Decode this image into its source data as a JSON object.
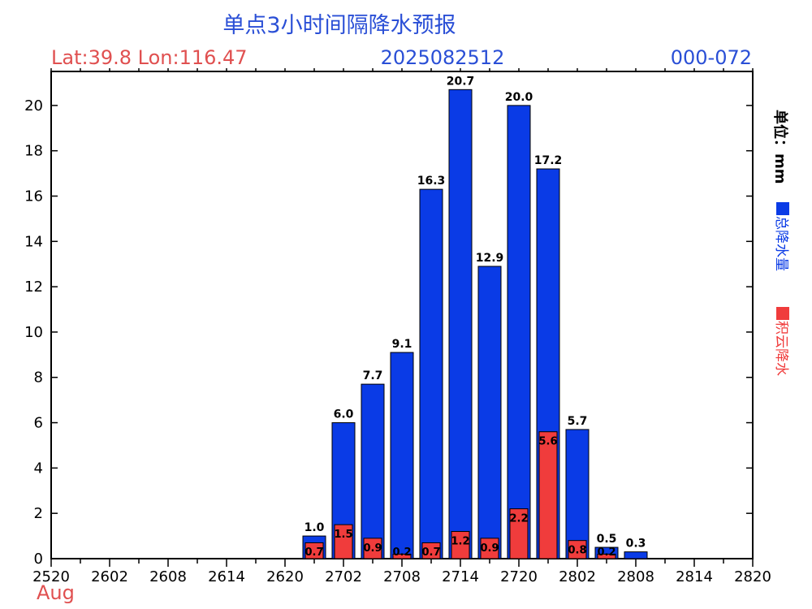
{
  "chart_data": {
    "type": "bar",
    "title": "单点3小时间隔降水预报",
    "location": "Lat:39.8 Lon:116.47",
    "issue_time": "2025082512",
    "forecast_range": "000-072",
    "month_label": "Aug",
    "unit_label": "单位：mm",
    "ylim": [
      0,
      21.5
    ],
    "yticks": [
      0,
      2,
      4,
      6,
      8,
      10,
      12,
      14,
      16,
      18,
      20
    ],
    "xlim": [
      0,
      72
    ],
    "x_tick_labels": [
      "2520",
      "2602",
      "2608",
      "2614",
      "2620",
      "2702",
      "2708",
      "2714",
      "2720",
      "2802",
      "2808",
      "2814",
      "2820"
    ],
    "x_tick_hours": [
      0,
      6,
      12,
      18,
      24,
      30,
      36,
      42,
      48,
      54,
      60,
      66,
      72
    ],
    "colors": {
      "total": "#0a3be6",
      "convective": "#f03c3c",
      "title": "#2a4fd6",
      "location": "#e05050",
      "axis": "#000000"
    },
    "series": [
      {
        "name": "总降水量",
        "x_hours": [
          27,
          30,
          33,
          36,
          39,
          42,
          45,
          48,
          51,
          54,
          57,
          60
        ],
        "values": [
          1.0,
          6.0,
          7.7,
          9.1,
          16.3,
          20.7,
          12.9,
          20.0,
          17.2,
          5.7,
          0.5,
          0.3
        ],
        "labels": [
          "1.0",
          "6.0",
          "7.7",
          "9.1",
          "16.3",
          "20.7",
          "12.9",
          "20.0",
          "17.2",
          "5.7",
          "0.5",
          "0.3"
        ]
      },
      {
        "name": "积云降水",
        "x_hours": [
          27,
          30,
          33,
          36,
          39,
          42,
          45,
          48,
          51,
          54,
          57
        ],
        "values": [
          0.7,
          1.5,
          0.9,
          0.2,
          0.7,
          1.2,
          0.9,
          2.2,
          5.6,
          0.8,
          0.2
        ],
        "labels": [
          "0.7",
          "1.5",
          "0.9",
          "0.2",
          "0.7",
          "1.2",
          "0.9",
          "2.2",
          "5.6",
          "0.8",
          "0.2"
        ]
      }
    ]
  }
}
